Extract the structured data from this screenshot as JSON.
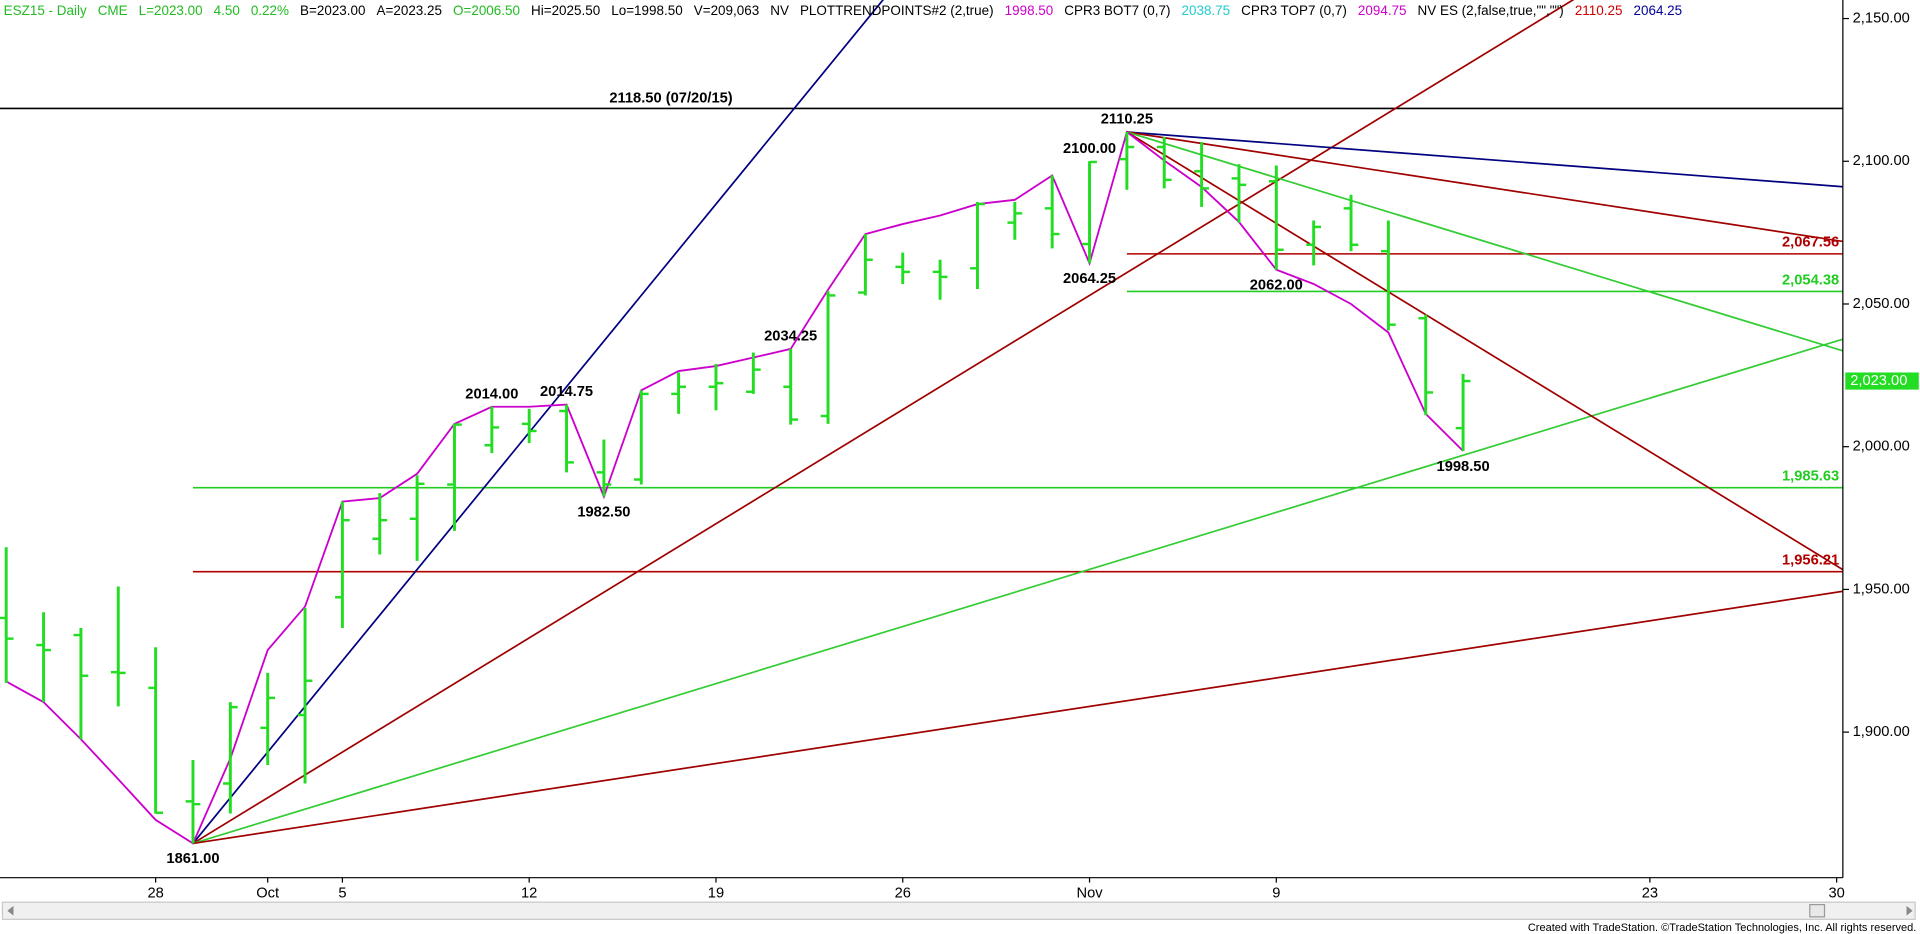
{
  "header": [
    {
      "text": "ESZ15 - Daily",
      "color": "#22bb22"
    },
    {
      "text": "CME",
      "color": "#22bb22"
    },
    {
      "text": "L=2023.00",
      "color": "#22bb22"
    },
    {
      "text": "4.50",
      "color": "#22bb22"
    },
    {
      "text": "0.22%",
      "color": "#22bb22"
    },
    {
      "text": "B=2023.00",
      "color": "#000000"
    },
    {
      "text": "A=2023.25",
      "color": "#000000"
    },
    {
      "text": "O=2006.50",
      "color": "#22bb22"
    },
    {
      "text": "Hi=2025.50",
      "color": "#000000"
    },
    {
      "text": "Lo=1998.50",
      "color": "#000000"
    },
    {
      "text": "V=209,063",
      "color": "#000000"
    },
    {
      "text": "NV",
      "color": "#000000"
    },
    {
      "text": "PLOTTRENDPOINTS#2 (2,true)",
      "color": "#000000"
    },
    {
      "text": "1998.50",
      "color": "#cc00cc"
    },
    {
      "text": "CPR3 BOT7 (0,7)",
      "color": "#000000"
    },
    {
      "text": "2038.75",
      "color": "#22cccc"
    },
    {
      "text": "CPR3 TOP7 (0,7)",
      "color": "#000000"
    },
    {
      "text": "2094.75",
      "color": "#cc00cc"
    },
    {
      "text": "NV ES (2,false,true,\"\",\"\")",
      "color": "#000000"
    },
    {
      "text": "2110.25",
      "color": "#cc0000"
    },
    {
      "text": "2064.25",
      "color": "#000099"
    }
  ],
  "footer": "Created with TradeStation. ©TradeStation Technologies, Inc. All rights reserved.",
  "chart_data": {
    "type": "ohlc",
    "categories": [
      null,
      null,
      null,
      null,
      "28",
      null,
      null,
      "Oct",
      null,
      "5",
      null,
      null,
      null,
      null,
      "12",
      null,
      null,
      null,
      null,
      "19",
      null,
      null,
      null,
      null,
      "26",
      null,
      null,
      null,
      null,
      "Nov",
      null,
      null,
      null,
      null,
      "9",
      null,
      null,
      null,
      null,
      null,
      null,
      null,
      null,
      null,
      "23",
      null,
      null,
      null,
      null,
      "30"
    ],
    "ohlc": {
      "color": "#22dd22",
      "open": [
        1940,
        1930.5,
        1934,
        1921,
        1915.5,
        1875.75,
        1882,
        1901.5,
        1906,
        1947.25,
        1967.75,
        1974.75,
        1986.75,
        2000.5,
        2008,
        2012.5,
        1991,
        1988.5,
        2018.5,
        2021,
        2019.25,
        2021,
        2010.75,
        2054,
        2063,
        2061.25,
        2062.5,
        2078.5,
        2083.5,
        2071,
        2100.75,
        2105,
        2096.5,
        2094,
        2093,
        2070.75,
        2083.5,
        2068.5,
        2045,
        2006.5,
        null,
        null,
        null,
        null,
        null,
        null,
        null,
        null,
        null,
        null
      ],
      "high": [
        1964.75,
        1942,
        1936.5,
        1951,
        1929.75,
        1890.25,
        1910.5,
        1920.75,
        1943.5,
        1980.75,
        1983.75,
        1990,
        2008,
        2014,
        2013.25,
        2014.75,
        2002.5,
        2019.75,
        2026,
        2029,
        2033,
        2034.25,
        2054.5,
        2074.5,
        2068,
        2065.5,
        2085.75,
        2085.75,
        2095,
        2100,
        2110.25,
        2108.5,
        2106.75,
        2099,
        2098.5,
        2079.25,
        2088.25,
        2079.25,
        2046.25,
        2025.5,
        null,
        null,
        null,
        null,
        null,
        null,
        null,
        null,
        null,
        null
      ],
      "low": [
        1917.25,
        1910.5,
        1897.5,
        1909,
        1871.5,
        1861,
        1871.5,
        1888.5,
        1882,
        1936.5,
        1962.25,
        1960,
        1970.5,
        1997.75,
        2001.25,
        1991,
        1982.5,
        1986.75,
        2011.5,
        2012.75,
        2018.5,
        2007.75,
        2008,
        2053,
        2057,
        2051.5,
        2055.25,
        2072.5,
        2069.5,
        2064.25,
        2090,
        2090.5,
        2084,
        2078.5,
        2062,
        2063.5,
        2068.5,
        2040.75,
        2011,
        1998.5,
        null,
        null,
        null,
        null,
        null,
        null,
        null,
        null,
        null,
        null
      ],
      "close": [
        1932.75,
        1928.75,
        1919.75,
        1920.75,
        1871.75,
        1874.75,
        1908.75,
        1912,
        1918,
        1974.25,
        1974.25,
        1987,
        2007.75,
        2006.75,
        2005.5,
        1994.5,
        1986.75,
        2018.5,
        2021,
        2022.25,
        2027,
        2009.5,
        2053,
        2065.5,
        2061.25,
        2059.5,
        2085,
        2081.75,
        2074.5,
        2099.75,
        2105,
        2093.5,
        2090.5,
        2091.75,
        2069,
        2077,
        2070.75,
        2042.75,
        2019,
        2023,
        null,
        null,
        null,
        null,
        null,
        null,
        null,
        null,
        null,
        null
      ]
    },
    "trend_line": {
      "color": "#cc00cc",
      "values": [
        1917.75,
        1910.5,
        1897.5,
        1883.5,
        1869.25,
        1861,
        1890.75,
        1928.75,
        1944,
        1980.75,
        1982,
        1990.5,
        2008,
        2014,
        2014,
        2014.75,
        1982.5,
        2019.75,
        2026.5,
        2028.25,
        2031.25,
        2034.25,
        2055,
        2074.5,
        2078,
        2081,
        2085,
        2086.5,
        2095,
        2064.25,
        2110.25,
        2100.25,
        2091,
        2078.75,
        2062,
        2057,
        2050,
        2040,
        2011.5,
        1998.5,
        null,
        null,
        null,
        null,
        null,
        null,
        null,
        null,
        null,
        null
      ]
    },
    "pivot_labels": [
      {
        "value": 1861,
        "label": "1861.00"
      },
      {
        "value": 2014,
        "label": "2014.00"
      },
      {
        "value": 2014.75,
        "label": "2014.75"
      },
      {
        "value": 1982.5,
        "label": "1982.50"
      },
      {
        "value": 2034.25,
        "label": "2034.25"
      },
      {
        "value": 2100,
        "label": "2100.00"
      },
      {
        "value": 2064.25,
        "label": "2064.25"
      },
      {
        "value": 2110.25,
        "label": "2110.25"
      },
      {
        "value": 2062,
        "label": "2062.00"
      },
      {
        "value": 1998.5,
        "label": "1998.50"
      }
    ],
    "levels": [
      {
        "value": 2118.5,
        "label": "2118.50 (07/20/15)",
        "color": "#000000",
        "anchor": "none"
      },
      {
        "value": 2067.56,
        "label": "2,067.56",
        "color": "#b00000",
        "anchor": "high"
      },
      {
        "value": 2054.38,
        "label": "2,054.38",
        "color": "#22cc22",
        "anchor": "high"
      },
      {
        "value": 1985.63,
        "label": "1,985.63",
        "color": "#22cc22",
        "anchor": "low"
      },
      {
        "value": 1956.21,
        "label": "1,956.21",
        "color": "#b00000",
        "anchor": "low"
      }
    ],
    "fans": [
      {
        "anchor": "low",
        "slope": 16,
        "color": "#000080"
      },
      {
        "anchor": "low",
        "slope": 8,
        "color": "#a00000"
      },
      {
        "anchor": "low",
        "slope": 4,
        "color": "#33cc33"
      },
      {
        "anchor": "low",
        "slope": 2,
        "color": "#a00000"
      },
      {
        "anchor": "high",
        "slope": -1,
        "color": "#000080"
      },
      {
        "anchor": "high",
        "slope": -2,
        "color": "#a00000"
      },
      {
        "anchor": "high",
        "slope": -4,
        "color": "#33cc33"
      },
      {
        "anchor": "high",
        "slope": -8,
        "color": "#a00000"
      }
    ],
    "last": {
      "value": 2023,
      "label": "2,023.00",
      "color": "#22dd22"
    },
    "ylim": [
      1849,
      2156.5
    ],
    "yticks": [
      {
        "value": 1900,
        "label": "1,900.00"
      },
      {
        "value": 1950,
        "label": "1,950.00"
      },
      {
        "value": 2000,
        "label": "2,000.00"
      },
      {
        "value": 2050,
        "label": "2,050.00"
      },
      {
        "value": 2100,
        "label": "2,100.00"
      },
      {
        "value": 2150,
        "label": "2,150.00"
      }
    ]
  }
}
